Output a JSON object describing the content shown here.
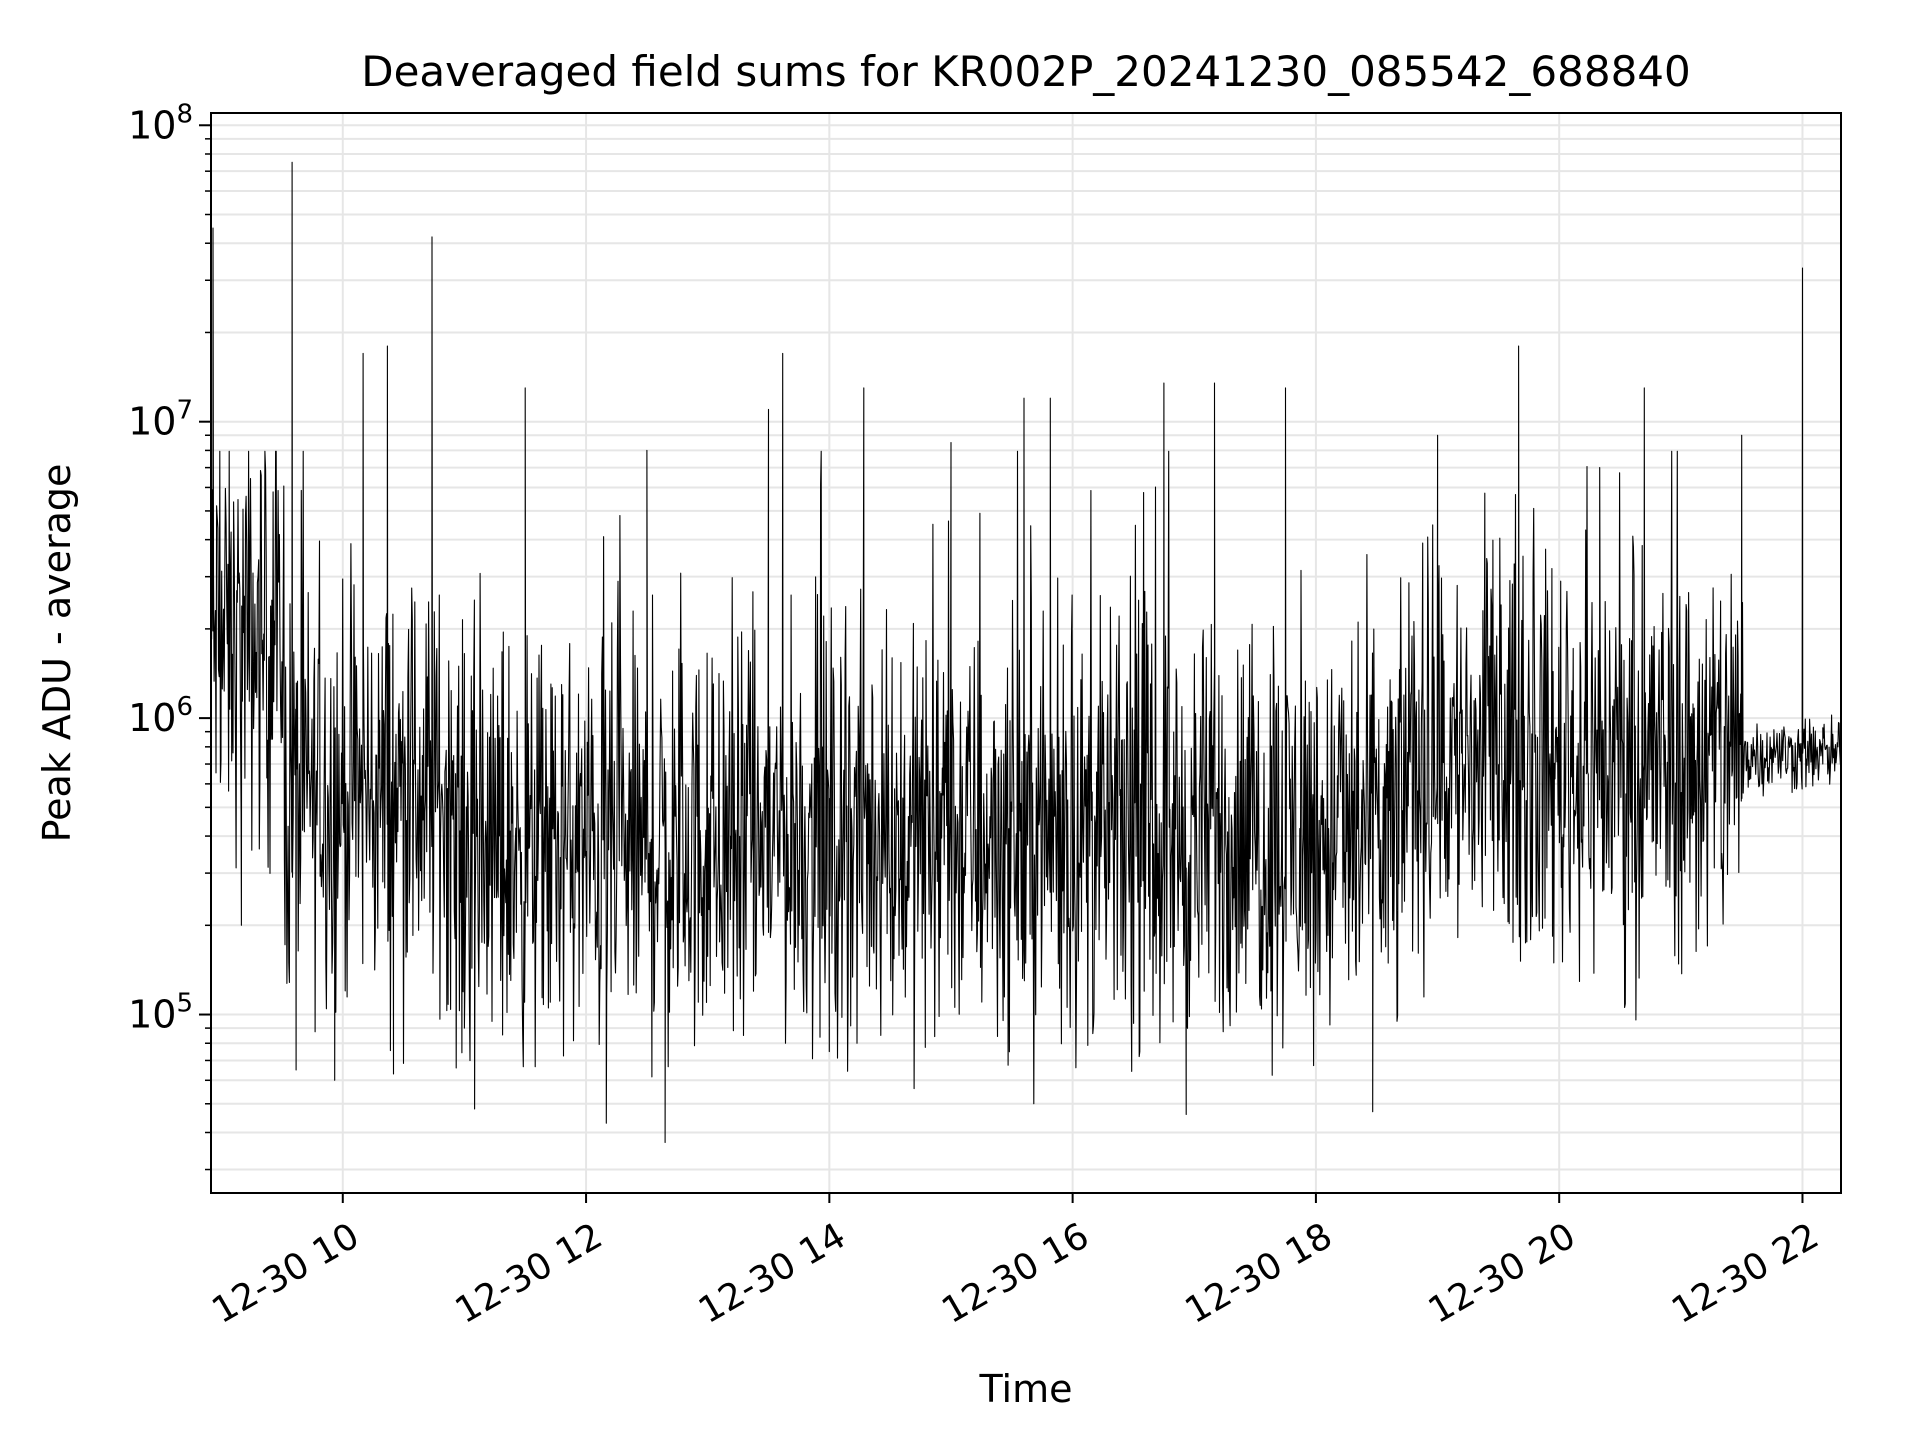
{
  "chart_data": {
    "type": "line",
    "title": "Deaveraged field sums for KR002P_20241230_085542_688840",
    "xlabel": "Time",
    "ylabel": "Peak ADU - average",
    "yscale": "log",
    "ylim": [
      25000,
      110000000
    ],
    "xlim": [
      "2024-12-30T08:55",
      "2024-12-30T22:19"
    ],
    "grid": true,
    "line_color": "#000000",
    "grid_color": "#e6e6e6",
    "x_ticks": [
      {
        "t": "2024-12-30T10:00",
        "label": "12-30 10"
      },
      {
        "t": "2024-12-30T12:00",
        "label": "12-30 12"
      },
      {
        "t": "2024-12-30T14:00",
        "label": "12-30 14"
      },
      {
        "t": "2024-12-30T16:00",
        "label": "12-30 16"
      },
      {
        "t": "2024-12-30T18:00",
        "label": "12-30 18"
      },
      {
        "t": "2024-12-30T20:00",
        "label": "12-30 20"
      },
      {
        "t": "2024-12-30T22:00",
        "label": "12-30 22"
      }
    ],
    "y_ticks": [
      {
        "value": 100000,
        "base": "10",
        "exp": "5"
      },
      {
        "value": 1000000,
        "base": "10",
        "exp": "6"
      },
      {
        "value": 10000000,
        "base": "10",
        "exp": "7"
      },
      {
        "value": 100000000,
        "base": "10",
        "exp": "8"
      }
    ],
    "series": [
      {
        "values": [
          {
            "t": "2024-12-30T08:56",
            "y": 45000000
          },
          {
            "t": "2024-12-30T09:00",
            "y": 1500000
          },
          {
            "t": "2024-12-30T09:10",
            "y": 200000
          },
          {
            "t": "2024-12-30T09:25",
            "y": 2500000
          },
          {
            "t": "2024-12-30T09:35",
            "y": 75000000
          },
          {
            "t": "2024-12-30T09:37",
            "y": 65000
          },
          {
            "t": "2024-12-30T09:56",
            "y": 60000
          },
          {
            "t": "2024-12-30T10:10",
            "y": 17000000
          },
          {
            "t": "2024-12-30T10:25",
            "y": 63000
          },
          {
            "t": "2024-12-30T10:22",
            "y": 18000000
          },
          {
            "t": "2024-12-30T10:40",
            "y": 600000
          },
          {
            "t": "2024-12-30T10:44",
            "y": 42000000
          },
          {
            "t": "2024-12-30T11:00",
            "y": 90000
          },
          {
            "t": "2024-12-30T11:05",
            "y": 48000
          },
          {
            "t": "2024-12-30T11:30",
            "y": 13000000
          },
          {
            "t": "2024-12-30T12:10",
            "y": 43000
          },
          {
            "t": "2024-12-30T12:30",
            "y": 8000000
          },
          {
            "t": "2024-12-30T12:39",
            "y": 37000
          },
          {
            "t": "2024-12-30T13:30",
            "y": 11000000
          },
          {
            "t": "2024-12-30T13:37",
            "y": 17000000
          },
          {
            "t": "2024-12-30T14:00",
            "y": 75000
          },
          {
            "t": "2024-12-30T14:17",
            "y": 13000000
          },
          {
            "t": "2024-12-30T15:00",
            "y": 8500000
          },
          {
            "t": "2024-12-30T15:36",
            "y": 12000000
          },
          {
            "t": "2024-12-30T15:49",
            "y": 12000000
          },
          {
            "t": "2024-12-30T16:45",
            "y": 13500000
          },
          {
            "t": "2024-12-30T16:56",
            "y": 46000
          },
          {
            "t": "2024-12-30T17:10",
            "y": 13500000
          },
          {
            "t": "2024-12-30T17:45",
            "y": 13000000
          },
          {
            "t": "2024-12-30T18:28",
            "y": 47000
          },
          {
            "t": "2024-12-30T19:00",
            "y": 9000000
          },
          {
            "t": "2024-12-30T19:40",
            "y": 18000000
          },
          {
            "t": "2024-12-30T20:20",
            "y": 7000000
          },
          {
            "t": "2024-12-30T20:42",
            "y": 13000000
          },
          {
            "t": "2024-12-30T21:30",
            "y": 9000000
          },
          {
            "t": "2024-12-30T22:00",
            "y": 33000000
          },
          {
            "t": "2024-12-30T22:10",
            "y": 700000
          },
          {
            "t": "2024-12-30T22:19",
            "y": 650000
          }
        ]
      }
    ]
  }
}
